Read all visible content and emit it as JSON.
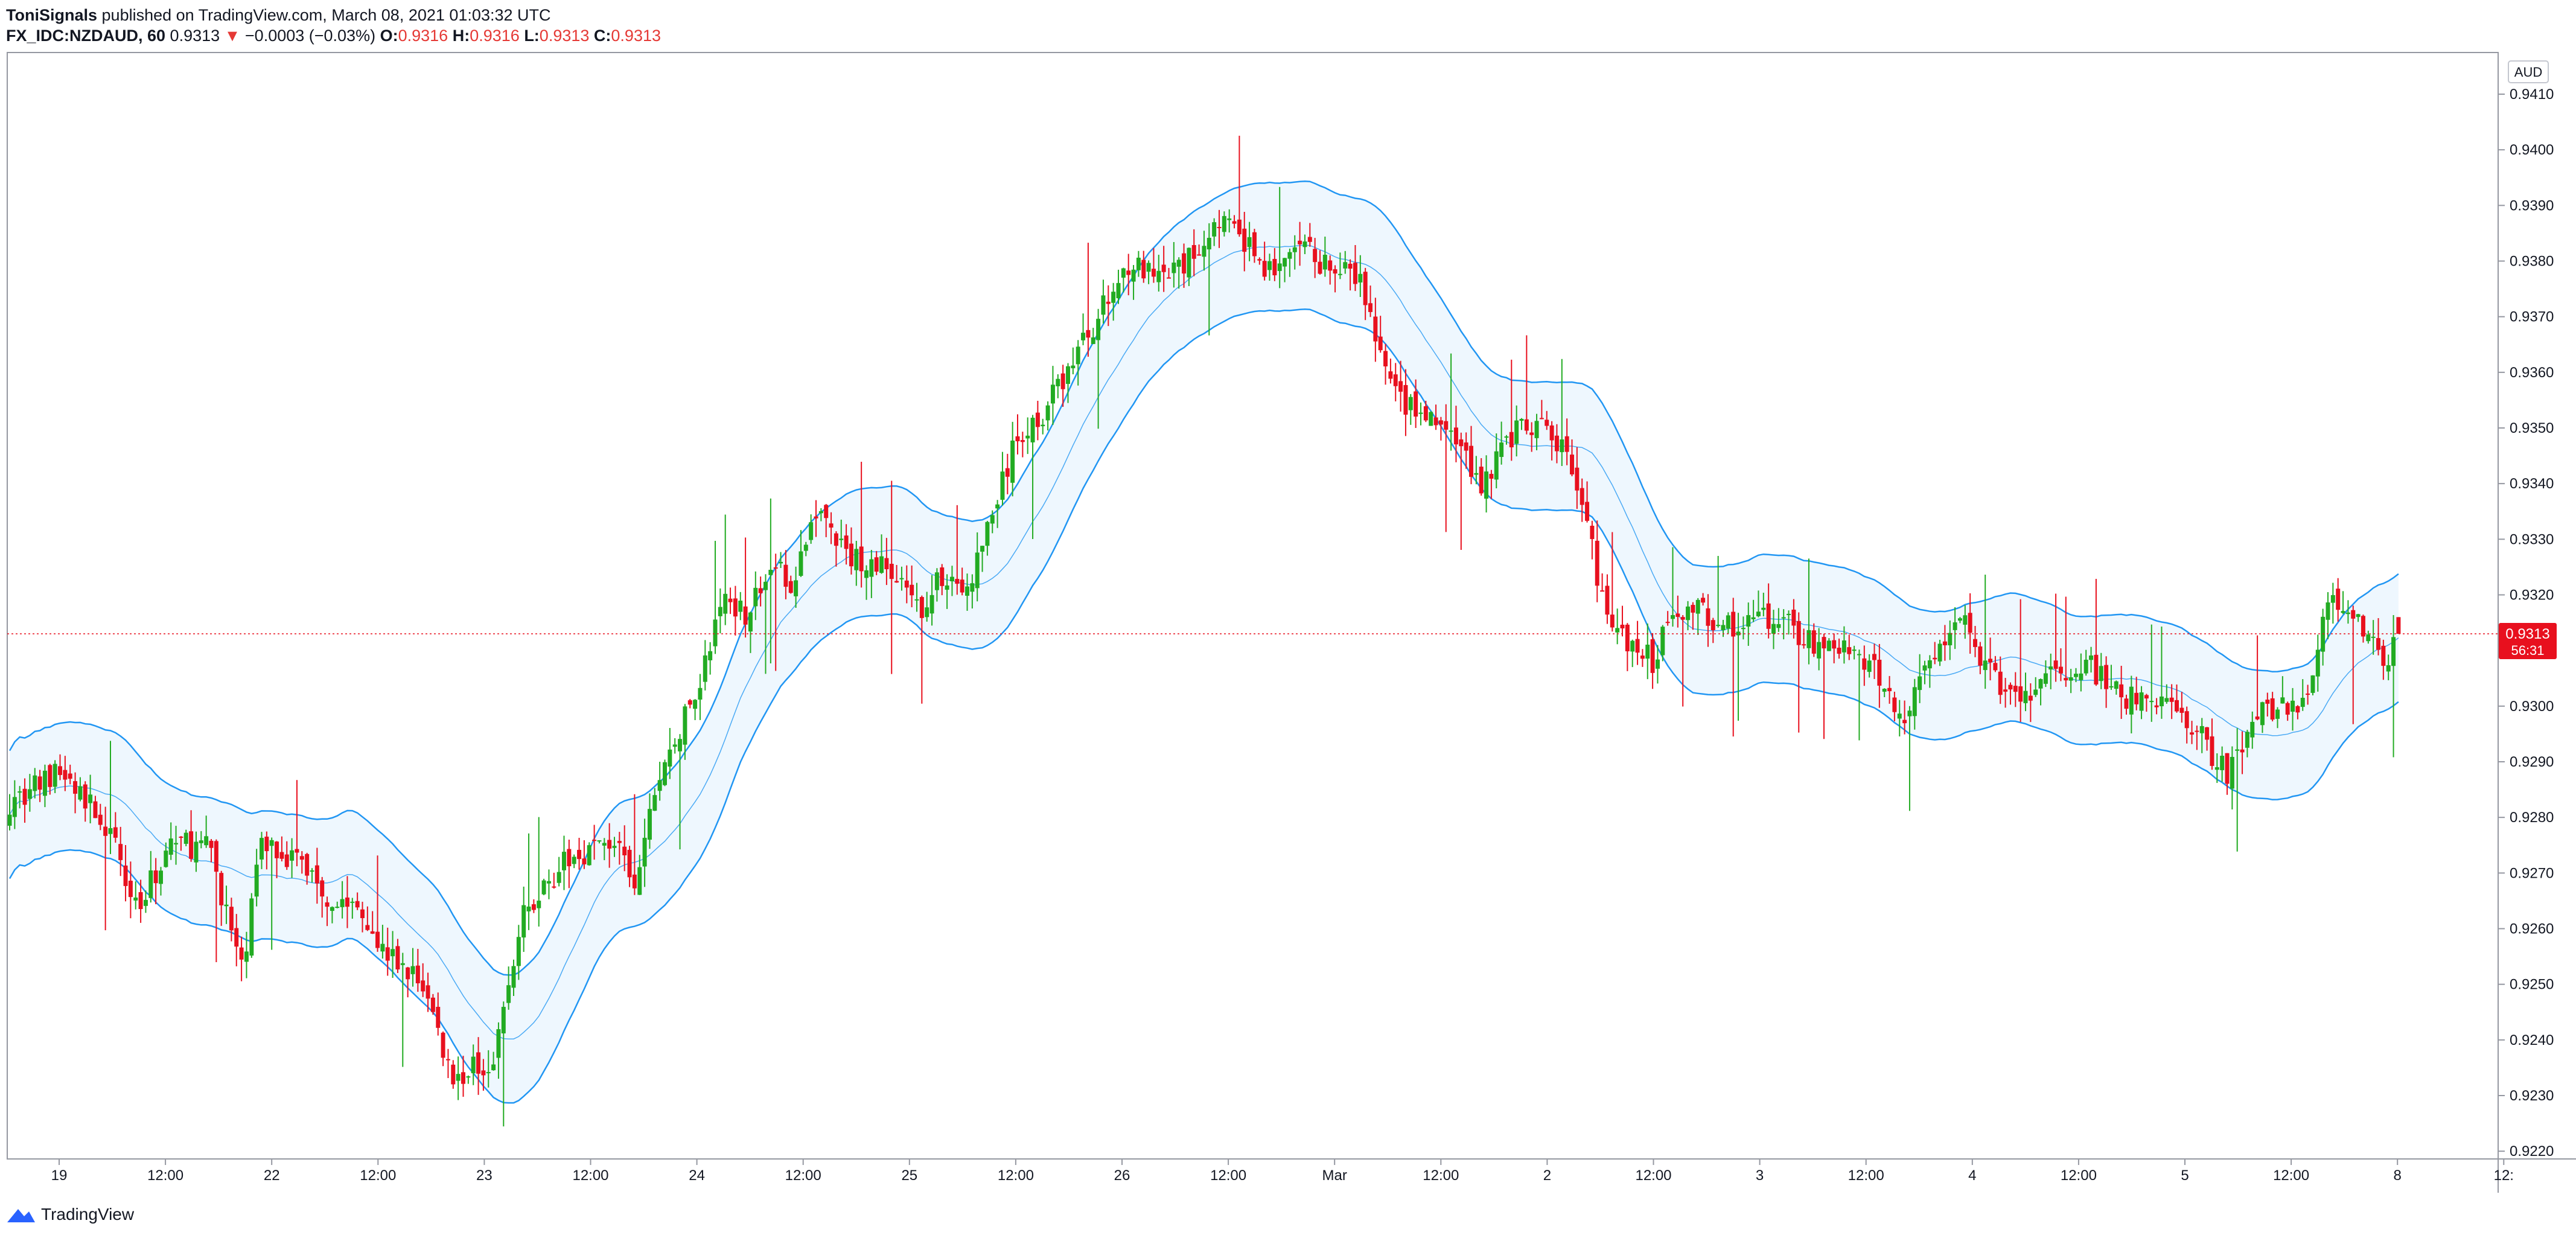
{
  "header": {
    "publisher": "ToniSignals",
    "published_text": "published on TradingView.com, March 08, 2021 01:03:32 UTC",
    "symbol": "FX_IDC:NZDAUD, 60",
    "last": "0.9313",
    "change": "−0.0003 (−0.03%)",
    "o_label": "O:",
    "o_value": "0.9316",
    "h_label": "H:",
    "h_value": "0.9316",
    "l_label": "L:",
    "l_value": "0.9313",
    "c_label": "C:",
    "c_value": "0.9313"
  },
  "axis": {
    "currency": "AUD",
    "price_ticks": [
      "0.9410",
      "0.9400",
      "0.9390",
      "0.9380",
      "0.9370",
      "0.9360",
      "0.9350",
      "0.9340",
      "0.9330",
      "0.9320",
      "0.9310",
      "0.9300",
      "0.9290",
      "0.9280",
      "0.9270",
      "0.9260",
      "0.9250",
      "0.9240",
      "0.9230",
      "0.9220"
    ],
    "time_labels": [
      "19",
      "12:00",
      "22",
      "12:00",
      "23",
      "12:00",
      "24",
      "12:00",
      "25",
      "12:00",
      "26",
      "12:00",
      "Mar",
      "12:00",
      "2",
      "12:00",
      "3",
      "12:00",
      "4",
      "12:00",
      "5",
      "12:00",
      "8",
      "12:"
    ],
    "current_price": "0.9313",
    "countdown": "56:31"
  },
  "colors": {
    "up": "#22ab22",
    "down": "#e8101e",
    "band": "#2196f3",
    "band_fill": "#e3f2fd",
    "grid": "#d1d4dc"
  },
  "footer": {
    "brand": "TradingView"
  },
  "chart_data": {
    "type": "candlestick",
    "symbol": "FX_IDC:NZDAUD",
    "interval": "60",
    "ylim": [
      0.922,
      0.9415
    ],
    "anchors": [
      [
        0,
        0.9283
      ],
      [
        10,
        0.9288
      ],
      [
        18,
        0.928
      ],
      [
        26,
        0.9264
      ],
      [
        32,
        0.9276
      ],
      [
        40,
        0.9274
      ],
      [
        46,
        0.9252
      ],
      [
        50,
        0.9276
      ],
      [
        58,
        0.9272
      ],
      [
        64,
        0.9265
      ],
      [
        70,
        0.9264
      ],
      [
        74,
        0.9256
      ],
      [
        82,
        0.925
      ],
      [
        88,
        0.9233
      ],
      [
        96,
        0.9237
      ],
      [
        102,
        0.9262
      ],
      [
        108,
        0.927
      ],
      [
        114,
        0.9274
      ],
      [
        120,
        0.9276
      ],
      [
        124,
        0.9266
      ],
      [
        128,
        0.9285
      ],
      [
        136,
        0.9302
      ],
      [
        142,
        0.932
      ],
      [
        146,
        0.9317
      ],
      [
        152,
        0.9325
      ],
      [
        156,
        0.9322
      ],
      [
        160,
        0.9336
      ],
      [
        166,
        0.9327
      ],
      [
        174,
        0.9325
      ],
      [
        180,
        0.9317
      ],
      [
        186,
        0.9324
      ],
      [
        190,
        0.932
      ],
      [
        194,
        0.9332
      ],
      [
        200,
        0.9348
      ],
      [
        206,
        0.9354
      ],
      [
        212,
        0.9364
      ],
      [
        218,
        0.9373
      ],
      [
        222,
        0.938
      ],
      [
        228,
        0.9376
      ],
      [
        234,
        0.938
      ],
      [
        240,
        0.9388
      ],
      [
        246,
        0.9382
      ],
      [
        250,
        0.9378
      ],
      [
        256,
        0.9382
      ],
      [
        262,
        0.9379
      ],
      [
        268,
        0.9376
      ],
      [
        274,
        0.9357
      ],
      [
        280,
        0.9352
      ],
      [
        286,
        0.9349
      ],
      [
        292,
        0.934
      ],
      [
        298,
        0.9349
      ],
      [
        304,
        0.935
      ],
      [
        310,
        0.9344
      ],
      [
        316,
        0.932
      ],
      [
        320,
        0.9312
      ],
      [
        326,
        0.9308
      ],
      [
        330,
        0.9318
      ],
      [
        336,
        0.9317
      ],
      [
        342,
        0.9314
      ],
      [
        350,
        0.9316
      ],
      [
        358,
        0.9311
      ],
      [
        364,
        0.931
      ],
      [
        370,
        0.9306
      ],
      [
        376,
        0.9298
      ],
      [
        382,
        0.931
      ],
      [
        388,
        0.9314
      ],
      [
        394,
        0.9304
      ],
      [
        400,
        0.9301
      ],
      [
        406,
        0.9306
      ],
      [
        412,
        0.9308
      ],
      [
        418,
        0.9302
      ],
      [
        424,
        0.9301
      ],
      [
        430,
        0.93
      ],
      [
        436,
        0.9293
      ],
      [
        440,
        0.9288
      ],
      [
        446,
        0.93
      ],
      [
        452,
        0.9299
      ],
      [
        456,
        0.9303
      ],
      [
        460,
        0.9319
      ],
      [
        464,
        0.9319
      ],
      [
        466,
        0.9315
      ],
      [
        468,
        0.9312
      ],
      [
        470,
        0.9308
      ],
      [
        472,
        0.9309
      ],
      [
        474,
        0.9313
      ]
    ],
    "band_period": 20,
    "band_width": 0.00115
  }
}
